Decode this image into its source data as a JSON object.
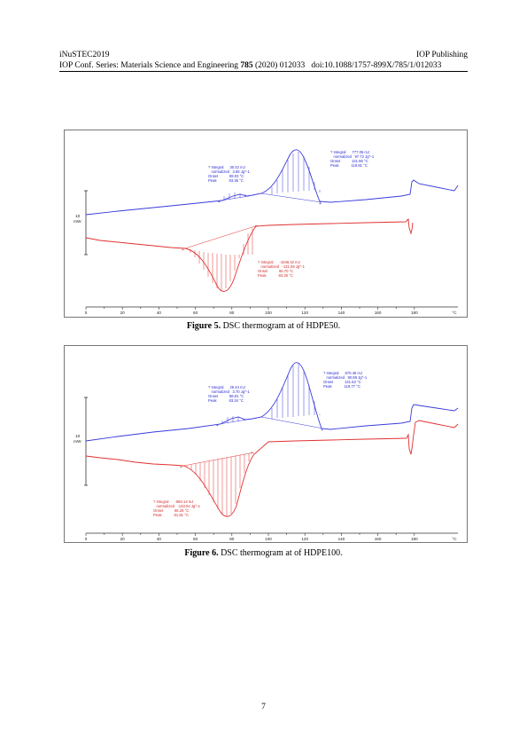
{
  "header": {
    "conference": "iNuSTEC2019",
    "publisher": "IOP Publishing",
    "series_prefix": "IOP Conf. Series: Materials Science and Engineering ",
    "volume": "785",
    "series_suffix": " (2020) 012033",
    "doi": "doi:10.1088/1757-899X/785/1/012033"
  },
  "figures": [
    {
      "caption_label": "Figure 5.",
      "caption_text": " DSC thermogram at of HDPE50.",
      "scale_label": [
        "10",
        "mW"
      ],
      "annotations": [
        {
          "lines": [
            "? Integral      30.42 mJ",
            "   normalized   3.85 Jg^-1",
            "Onset           89.03 °C",
            "Peak            83.36 °C"
          ]
        },
        {
          "lines": [
            "? Integral      777.05 mJ",
            "   normalized   97.72 Jg^-1",
            "Onset           131.96 °C",
            "Peak            119.81 °C"
          ]
        },
        {
          "lines": [
            "? Integral      -1046.42 mJ",
            "   normalized   -131.59 Jg^-1",
            "Onset           66.70 °C",
            "Peak            83.26 °C"
          ]
        }
      ]
    },
    {
      "caption_label": "Figure 6.",
      "caption_text": " DSC thermogram at of HDPE100.",
      "scale_label": [
        "10",
        "mW"
      ],
      "annotations": [
        {
          "lines": [
            "? Integral      26.44 mJ",
            "   normalized   3.70 Jg^-1",
            "Onset           88.81 °C",
            "Peak            83.34 °C"
          ]
        },
        {
          "lines": [
            "? Integral      670.46 mJ",
            "   normalized   90.88 Jg^-1",
            "Onset           131.53 °C",
            "Peak            119.77 °C"
          ]
        },
        {
          "lines": [
            "? Integral      -950.14 mJ",
            "   normalized   -133.04 Jg^-1",
            "Onset           66.28 °C",
            "Peak            81.81 °C"
          ]
        }
      ]
    }
  ],
  "axis": {
    "ticks": [
      "0",
      "20",
      "40",
      "60",
      "80",
      "100",
      "120",
      "140",
      "160",
      "180"
    ],
    "unit": "°C"
  },
  "colors": {
    "heating": "#3a3adb",
    "cooling": "#e03030",
    "axis": "#333333",
    "annotation": "#2b2bd0",
    "annotation_red": "#d42a2a"
  },
  "page_number": "7"
}
